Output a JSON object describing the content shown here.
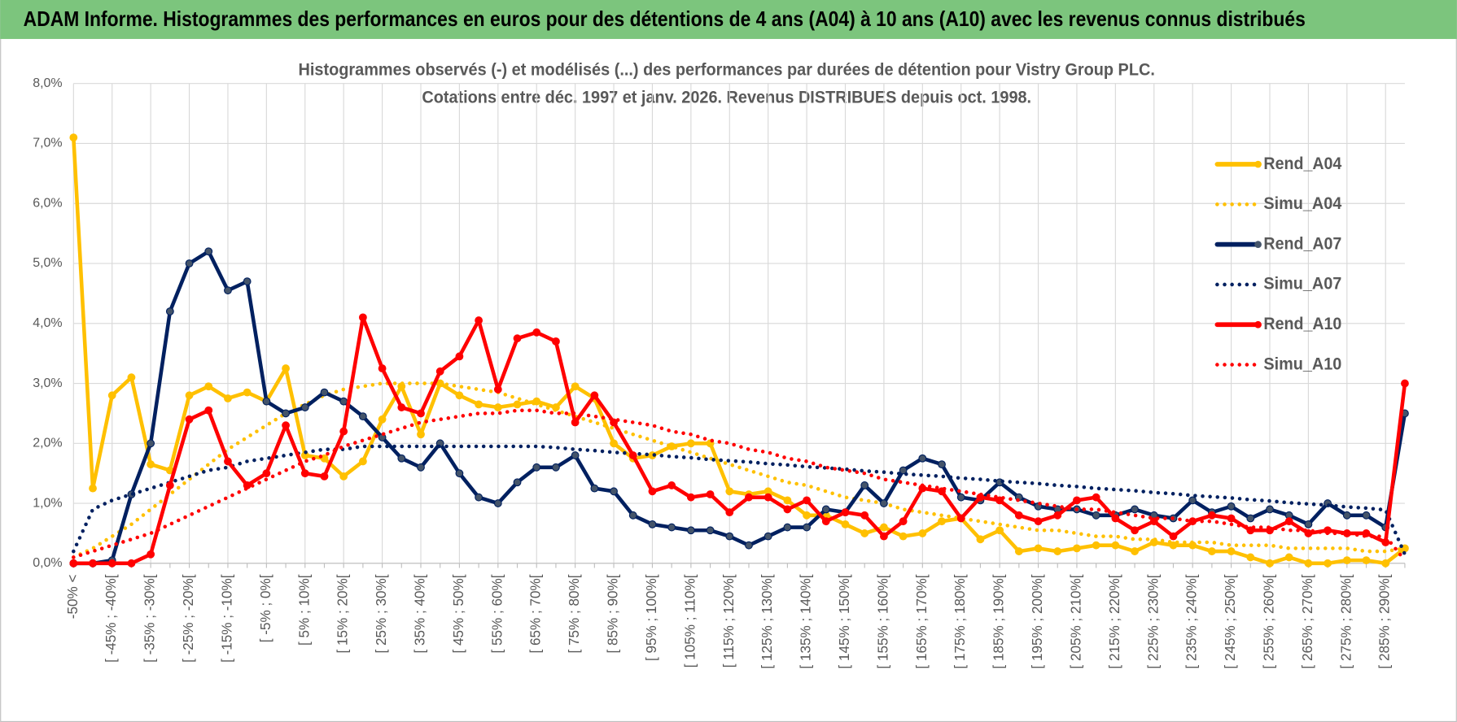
{
  "header": {
    "title": "ADAM Informe. Histogrammes des performances en euros pour des détentions de 4 ans (A04) à 10 ans (A10) avec les revenus connus distribués"
  },
  "chart_data": {
    "type": "line",
    "title": "Histogrammes observés (-) et modélisés (...) des performances par durées de détention pour Vistry Group PLC.",
    "subtitle": "Cotations entre déc. 1997 et janv. 2026. Revenus DISTRIBUES depuis oct. 1998.",
    "categories": [
      "-50% <",
      null,
      "[ -45% ; -40%[",
      null,
      "[ -35% ; -30%[",
      null,
      "[ -25% ; -20%[",
      null,
      "[ -15% ; -10%[",
      null,
      "[ -5% ; 0%[",
      null,
      "[ 5% ; 10%[",
      null,
      "[ 15% ; 20%[",
      null,
      "[ 25% ; 30%[",
      null,
      "[ 35% ; 40%[",
      null,
      "[ 45% ; 50%[",
      null,
      "[ 55% ; 60%[",
      null,
      "[ 65% ; 70%[",
      null,
      "[ 75% ; 80%[",
      null,
      "[ 85% ; 90%[",
      null,
      "[ 95% ; 100%[",
      null,
      "[ 105% ; 110%[",
      null,
      "[ 115% ; 120%[",
      null,
      "[ 125% ; 130%[",
      null,
      "[ 135% ; 140%[",
      null,
      "[ 145% ; 150%[",
      null,
      "[ 155% ; 160%[",
      null,
      "[ 165% ; 170%[",
      null,
      "[ 175% ; 180%[",
      null,
      "[ 185% ; 190%[",
      null,
      "[ 195% ; 200%[",
      null,
      "[ 205% ; 210%[",
      null,
      "[ 215% ; 220%[",
      null,
      "[ 225% ; 230%[",
      null,
      "[ 235% ; 240%[",
      null,
      "[ 245% ; 250%[",
      null,
      "[ 255% ; 260%[",
      null,
      "[ 265% ; 270%[",
      null,
      "[ 275% ; 280%[",
      null,
      "[ 285% ; 290%[",
      null
    ],
    "series": [
      {
        "name": "Rend_A04",
        "color": "#ffc000",
        "line_style": "solid",
        "markers": true,
        "values": [
          7.1,
          1.25,
          2.8,
          3.1,
          1.65,
          1.55,
          2.8,
          2.95,
          2.75,
          2.85,
          2.7,
          3.25,
          1.8,
          1.75,
          1.45,
          1.7,
          2.4,
          2.95,
          2.15,
          3.0,
          2.8,
          2.65,
          2.6,
          2.65,
          2.7,
          2.6,
          2.95,
          2.75,
          2.0,
          1.75,
          1.8,
          1.95,
          2.0,
          2.0,
          1.2,
          1.15,
          1.2,
          1.05,
          0.8,
          0.8,
          0.65,
          0.5,
          0.6,
          0.45,
          0.5,
          0.7,
          0.75,
          0.4,
          0.55,
          0.2,
          0.25,
          0.2,
          0.25,
          0.3,
          0.3,
          0.2,
          0.35,
          0.3,
          0.3,
          0.2,
          0.2,
          0.1,
          0.0,
          0.1,
          0.0,
          0.0,
          0.05,
          0.05,
          0.0,
          0.25
        ]
      },
      {
        "name": "Simu_A04",
        "color": "#ffc000",
        "line_style": "dotted",
        "markers": false,
        "values": [
          0.1,
          0.25,
          0.45,
          0.65,
          0.9,
          1.15,
          1.4,
          1.65,
          1.9,
          2.1,
          2.3,
          2.5,
          2.65,
          2.8,
          2.9,
          2.95,
          3.0,
          3.0,
          3.0,
          3.0,
          2.95,
          2.9,
          2.85,
          2.75,
          2.65,
          2.55,
          2.45,
          2.35,
          2.25,
          2.15,
          2.05,
          1.95,
          1.85,
          1.75,
          1.65,
          1.55,
          1.45,
          1.35,
          1.3,
          1.2,
          1.1,
          1.05,
          1.0,
          0.9,
          0.85,
          0.8,
          0.75,
          0.7,
          0.65,
          0.6,
          0.55,
          0.55,
          0.5,
          0.45,
          0.45,
          0.4,
          0.4,
          0.35,
          0.35,
          0.35,
          0.3,
          0.3,
          0.3,
          0.25,
          0.25,
          0.25,
          0.25,
          0.2,
          0.2,
          0.25
        ]
      },
      {
        "name": "Rend_A07",
        "color": "#002060",
        "line_style": "solid",
        "markers": true,
        "values": [
          0,
          0,
          0.05,
          1.15,
          2.0,
          4.2,
          5.0,
          5.2,
          4.55,
          4.7,
          2.7,
          2.5,
          2.6,
          2.85,
          2.7,
          2.45,
          2.1,
          1.75,
          1.6,
          2.0,
          1.5,
          1.1,
          1.0,
          1.35,
          1.6,
          1.6,
          1.8,
          1.25,
          1.2,
          0.8,
          0.65,
          0.6,
          0.55,
          0.55,
          0.45,
          0.3,
          0.45,
          0.6,
          0.6,
          0.9,
          0.85,
          1.3,
          1.0,
          1.55,
          1.75,
          1.65,
          1.1,
          1.05,
          1.35,
          1.1,
          0.95,
          0.9,
          0.9,
          0.8,
          0.8,
          0.9,
          0.8,
          0.75,
          1.05,
          0.85,
          0.95,
          0.75,
          0.9,
          0.8,
          0.65,
          1.0,
          0.8,
          0.8,
          0.6,
          2.5
        ]
      },
      {
        "name": "Simu_A07",
        "color": "#002060",
        "line_style": "dotted",
        "markers": false,
        "values": [
          0.2,
          0.9,
          1.05,
          1.15,
          1.25,
          1.35,
          1.45,
          1.55,
          1.6,
          1.7,
          1.75,
          1.8,
          1.85,
          1.9,
          1.9,
          1.95,
          1.95,
          1.95,
          1.95,
          1.95,
          1.95,
          1.95,
          1.95,
          1.95,
          1.95,
          1.93,
          1.9,
          1.88,
          1.85,
          1.83,
          1.81,
          1.78,
          1.76,
          1.73,
          1.71,
          1.69,
          1.66,
          1.64,
          1.61,
          1.59,
          1.57,
          1.54,
          1.52,
          1.49,
          1.47,
          1.45,
          1.42,
          1.4,
          1.37,
          1.35,
          1.33,
          1.3,
          1.28,
          1.25,
          1.23,
          1.21,
          1.18,
          1.16,
          1.13,
          1.11,
          1.09,
          1.06,
          1.04,
          1.01,
          0.99,
          0.97,
          0.94,
          0.92,
          0.89,
          0.15
        ]
      },
      {
        "name": "Rend_A10",
        "color": "#ff0000",
        "line_style": "solid",
        "markers": true,
        "values": [
          0,
          0,
          0,
          0,
          0.15,
          1.3,
          2.4,
          2.55,
          1.7,
          1.3,
          1.5,
          2.3,
          1.5,
          1.45,
          2.2,
          4.1,
          3.25,
          2.6,
          2.5,
          3.2,
          3.45,
          4.05,
          2.9,
          3.75,
          3.85,
          3.7,
          2.35,
          2.8,
          2.35,
          1.8,
          1.2,
          1.3,
          1.1,
          1.15,
          0.85,
          1.1,
          1.1,
          0.9,
          1.05,
          0.7,
          0.85,
          0.8,
          0.45,
          0.7,
          1.25,
          1.2,
          0.75,
          1.1,
          1.05,
          0.8,
          0.7,
          0.8,
          1.05,
          1.1,
          0.75,
          0.55,
          0.7,
          0.45,
          0.7,
          0.8,
          0.75,
          0.55,
          0.55,
          0.7,
          0.5,
          0.55,
          0.5,
          0.5,
          0.35,
          3.0
        ]
      },
      {
        "name": "Simu_A10",
        "color": "#ff0000",
        "line_style": "dotted",
        "markers": false,
        "values": [
          0.1,
          0.2,
          0.3,
          0.4,
          0.5,
          0.65,
          0.8,
          0.95,
          1.1,
          1.25,
          1.4,
          1.55,
          1.7,
          1.8,
          1.95,
          2.05,
          2.15,
          2.25,
          2.35,
          2.4,
          2.45,
          2.5,
          2.5,
          2.55,
          2.55,
          2.5,
          2.5,
          2.45,
          2.4,
          2.35,
          2.3,
          2.2,
          2.15,
          2.05,
          2.0,
          1.9,
          1.85,
          1.75,
          1.7,
          1.6,
          1.55,
          1.5,
          1.4,
          1.35,
          1.3,
          1.25,
          1.2,
          1.15,
          1.1,
          1.05,
          1.0,
          0.95,
          0.9,
          0.9,
          0.85,
          0.8,
          0.75,
          0.75,
          0.7,
          0.7,
          0.65,
          0.6,
          0.6,
          0.55,
          0.55,
          0.5,
          0.5,
          0.45,
          0.45,
          0.05
        ]
      }
    ],
    "ylim": [
      0,
      8
    ],
    "yticks": [
      {
        "value": 0,
        "label": "0,0%"
      },
      {
        "value": 1,
        "label": "1,0%"
      },
      {
        "value": 2,
        "label": "2,0%"
      },
      {
        "value": 3,
        "label": "3,0%"
      },
      {
        "value": 4,
        "label": "4,0%"
      },
      {
        "value": 5,
        "label": "5,0%"
      },
      {
        "value": 6,
        "label": "6,0%"
      },
      {
        "value": 7,
        "label": "7,0%"
      },
      {
        "value": 8,
        "label": "8,0%"
      }
    ],
    "grid": true,
    "legend": "right"
  }
}
